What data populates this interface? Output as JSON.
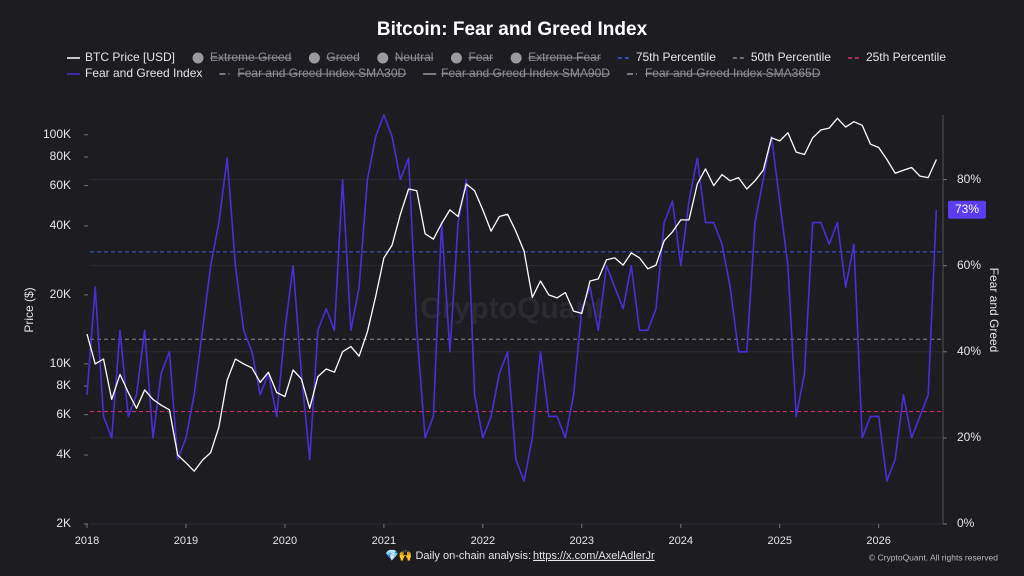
{
  "chart_data": {
    "type": "line",
    "title": "Bitcoin: Fear and Greed Index",
    "ylabel": "Price ($)",
    "y2label": "Fear and Greed",
    "watermark": "CryptoQuant",
    "footer": "💎🙌 Daily on-chain analysis: ",
    "footer_link": "https://x.com/AxelAdlerJr",
    "copyright": "© CryptoQuant. All rights reserved",
    "log_y": true,
    "grid": true,
    "xlim": [
      2018,
      2026.65
    ],
    "xticks": [
      2018,
      2019,
      2020,
      2021,
      2022,
      2023,
      2024,
      2025,
      2026
    ],
    "ylim": [
      2000,
      122000
    ],
    "yticks": [
      {
        "value": 2000,
        "label": "2K"
      },
      {
        "value": 4000,
        "label": "4K"
      },
      {
        "value": 6000,
        "label": "6K"
      },
      {
        "value": 8000,
        "label": "8K"
      },
      {
        "value": 10000,
        "label": "10K"
      },
      {
        "value": 20000,
        "label": "20K"
      },
      {
        "value": 40000,
        "label": "40K"
      },
      {
        "value": 60000,
        "label": "60K"
      },
      {
        "value": 80000,
        "label": "80K"
      },
      {
        "value": 100000,
        "label": "100K"
      }
    ],
    "y2lim": [
      0,
      95
    ],
    "y2ticks": [
      {
        "value": 0,
        "label": "0%"
      },
      {
        "value": 20,
        "label": "20%"
      },
      {
        "value": 40,
        "label": "40%"
      },
      {
        "value": 60,
        "label": "60%"
      },
      {
        "value": 80,
        "label": "80%"
      }
    ],
    "current_value": {
      "value": 73,
      "label": "73%",
      "color": "#5b3cf0"
    },
    "x": [
      2018,
      2018.083,
      2018.167,
      2018.25,
      2018.333,
      2018.417,
      2018.5,
      2018.583,
      2018.667,
      2018.75,
      2018.833,
      2018.917,
      2019,
      2019.083,
      2019.167,
      2019.25,
      2019.333,
      2019.417,
      2019.5,
      2019.583,
      2019.667,
      2019.75,
      2019.833,
      2019.917,
      2020,
      2020.083,
      2020.167,
      2020.25,
      2020.333,
      2020.417,
      2020.5,
      2020.583,
      2020.667,
      2020.75,
      2020.833,
      2020.917,
      2021,
      2021.083,
      2021.167,
      2021.25,
      2021.333,
      2021.417,
      2021.5,
      2021.583,
      2021.667,
      2021.75,
      2021.833,
      2021.917,
      2022,
      2022.083,
      2022.167,
      2022.25,
      2022.333,
      2022.417,
      2022.5,
      2022.583,
      2022.667,
      2022.75,
      2022.833,
      2022.917,
      2023,
      2023.083,
      2023.167,
      2023.25,
      2023.333,
      2023.417,
      2023.5,
      2023.583,
      2023.667,
      2023.75,
      2023.833,
      2023.917,
      2024,
      2024.083,
      2024.167,
      2024.25,
      2024.333,
      2024.417,
      2024.5,
      2024.583,
      2024.667,
      2024.75,
      2024.833,
      2024.917,
      2025,
      2025.083,
      2025.167,
      2025.25,
      2025.333,
      2025.417,
      2025.5,
      2025.583,
      2025.667,
      2025.75,
      2025.833,
      2025.917,
      2026,
      2026.083,
      2026.167,
      2026.25,
      2026.333,
      2026.417,
      2026.5,
      2026.583
    ],
    "series": [
      {
        "name": "BTC Price [USD]",
        "color": "#ffffff",
        "style": "line",
        "values": [
          13500,
          10000,
          10500,
          7000,
          9000,
          7500,
          6400,
          7700,
          7000,
          6600,
          6300,
          4000,
          3700,
          3400,
          3800,
          4100,
          5300,
          8500,
          10500,
          10000,
          9600,
          8300,
          9200,
          7500,
          7200,
          9400,
          8600,
          6400,
          8800,
          9500,
          9200,
          11300,
          11900,
          10800,
          13800,
          19700,
          29000,
          33000,
          45000,
          58000,
          57000,
          37000,
          35000,
          41000,
          47000,
          44000,
          61000,
          57000,
          47000,
          38000,
          44000,
          45000,
          38000,
          31000,
          19500,
          23000,
          20000,
          19400,
          20500,
          17000,
          16600,
          23000,
          23500,
          28500,
          29000,
          27000,
          30500,
          29000,
          26000,
          27000,
          34500,
          37700,
          42500,
          42500,
          61000,
          71000,
          60000,
          67000,
          63000,
          65000,
          58000,
          63000,
          70000,
          97000,
          94000,
          102000,
          84000,
          82000,
          97000,
          105000,
          107000,
          118000,
          108000,
          114000,
          110000,
          91000,
          88000,
          78000,
          68000,
          70000,
          72000,
          66000,
          65000,
          78000
        ]
      },
      {
        "name": "Extreme Greed",
        "color": "#9a9a9f",
        "style": "dot",
        "hidden": true
      },
      {
        "name": "Greed",
        "color": "#9a9a9f",
        "style": "dot",
        "hidden": true
      },
      {
        "name": "Neutral",
        "color": "#9a9a9f",
        "style": "dot",
        "hidden": true
      },
      {
        "name": "Fear",
        "color": "#9a9a9f",
        "style": "dot",
        "hidden": true
      },
      {
        "name": "Extreme Fear",
        "color": "#9a9a9f",
        "style": "dot",
        "hidden": true
      },
      {
        "name": "75th Percentile",
        "color": "#3f5fd8",
        "style": "dashed",
        "axis": "y2",
        "value": 63.2
      },
      {
        "name": "50th Percentile",
        "color": "#8a8a8f",
        "style": "dashed",
        "axis": "y2",
        "value": 42.9
      },
      {
        "name": "25th Percentile",
        "color": "#d8336b",
        "style": "dashed",
        "axis": "y2",
        "value": 26.1
      },
      {
        "name": "Fear and Greed Index",
        "color": "#4b2fd6",
        "style": "line",
        "axis": "y2",
        "values": [
          30,
          55,
          25,
          20,
          45,
          25,
          30,
          45,
          20,
          35,
          40,
          15,
          20,
          30,
          45,
          60,
          70,
          85,
          60,
          45,
          40,
          30,
          35,
          25,
          45,
          60,
          35,
          15,
          45,
          50,
          45,
          80,
          45,
          55,
          80,
          90,
          95,
          90,
          80,
          85,
          45,
          20,
          25,
          70,
          40,
          70,
          80,
          30,
          20,
          25,
          35,
          40,
          15,
          10,
          20,
          40,
          25,
          25,
          20,
          30,
          50,
          55,
          45,
          60,
          55,
          50,
          60,
          45,
          45,
          50,
          70,
          75,
          60,
          75,
          85,
          70,
          70,
          65,
          55,
          40,
          40,
          70,
          80,
          90,
          75,
          60,
          25,
          35,
          70,
          70,
          65,
          70,
          55,
          65,
          20,
          25,
          25,
          10,
          15,
          30,
          20,
          25,
          30,
          73
        ]
      },
      {
        "name": "Fear and Greed Index SMA30D",
        "color": "#9a9a9f",
        "style": "dashdot",
        "hidden": true
      },
      {
        "name": "Fear and Greed Index SMA90D",
        "color": "#9a9a9f",
        "style": "line",
        "hidden": true
      },
      {
        "name": "Fear and Greed Index SMA365D",
        "color": "#9a9a9f",
        "style": "dashdot",
        "hidden": true
      }
    ]
  }
}
